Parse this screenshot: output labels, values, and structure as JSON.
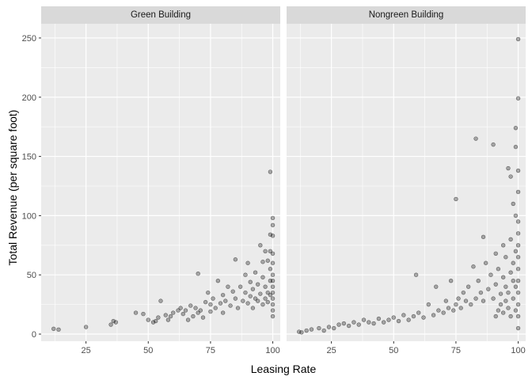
{
  "colors": {
    "panel_bg": "#ebebeb",
    "strip_bg": "#d9d9d9",
    "grid_major": "#ffffff",
    "tick": "#333333",
    "point_fill": "#000000",
    "point_opacity": 0.3
  },
  "chart_data": {
    "type": "scatter",
    "xlabel": "Leasing Rate",
    "ylabel": "Total Revenue (per square foot)",
    "xlim": [
      7,
      103
    ],
    "ylim": [
      -6,
      262
    ],
    "x_ticks": [
      25,
      50,
      75,
      100
    ],
    "y_ticks": [
      0,
      50,
      100,
      150,
      200,
      250
    ],
    "grid": true,
    "facets": [
      {
        "label": "Green Building",
        "points": [
          [
            12,
            4.5
          ],
          [
            14,
            3.8
          ],
          [
            25,
            6
          ],
          [
            35,
            8
          ],
          [
            36,
            11
          ],
          [
            37,
            10
          ],
          [
            45,
            18
          ],
          [
            48,
            17
          ],
          [
            50,
            12
          ],
          [
            52,
            10
          ],
          [
            53,
            11
          ],
          [
            54,
            14
          ],
          [
            55,
            28
          ],
          [
            57,
            16
          ],
          [
            58,
            12
          ],
          [
            59,
            15
          ],
          [
            60,
            18
          ],
          [
            62,
            20
          ],
          [
            63,
            22
          ],
          [
            64,
            17
          ],
          [
            65,
            20
          ],
          [
            66,
            12
          ],
          [
            67,
            24
          ],
          [
            68,
            15
          ],
          [
            69,
            22
          ],
          [
            70,
            51
          ],
          [
            70,
            18
          ],
          [
            71,
            20
          ],
          [
            72,
            14
          ],
          [
            73,
            27
          ],
          [
            74,
            35
          ],
          [
            75,
            25
          ],
          [
            75,
            19
          ],
          [
            76,
            30
          ],
          [
            77,
            22
          ],
          [
            78,
            45
          ],
          [
            79,
            26
          ],
          [
            80,
            33
          ],
          [
            80,
            18
          ],
          [
            81,
            28
          ],
          [
            82,
            40
          ],
          [
            83,
            24
          ],
          [
            84,
            36
          ],
          [
            85,
            63
          ],
          [
            85,
            30
          ],
          [
            86,
            22
          ],
          [
            87,
            40
          ],
          [
            88,
            28
          ],
          [
            89,
            35
          ],
          [
            89,
            50
          ],
          [
            90,
            60
          ],
          [
            90,
            26
          ],
          [
            91,
            32
          ],
          [
            91,
            44
          ],
          [
            92,
            22
          ],
          [
            92,
            38
          ],
          [
            93,
            30
          ],
          [
            93,
            52
          ],
          [
            94,
            28
          ],
          [
            94,
            42
          ],
          [
            95,
            75
          ],
          [
            95,
            34
          ],
          [
            96,
            25
          ],
          [
            96,
            48
          ],
          [
            96,
            61
          ],
          [
            97,
            70
          ],
          [
            97,
            30
          ],
          [
            97,
            40
          ],
          [
            98,
            62
          ],
          [
            98,
            35
          ],
          [
            98,
            27
          ],
          [
            99,
            137
          ],
          [
            99,
            84
          ],
          [
            99,
            70
          ],
          [
            99,
            55
          ],
          [
            99,
            45
          ],
          [
            99,
            33
          ],
          [
            100,
            98
          ],
          [
            100,
            83
          ],
          [
            100,
            92
          ],
          [
            100,
            60
          ],
          [
            100,
            50
          ],
          [
            100,
            40
          ],
          [
            100,
            30
          ],
          [
            100,
            20
          ],
          [
            100,
            15
          ],
          [
            100,
            25
          ],
          [
            100,
            35
          ],
          [
            100,
            68
          ],
          [
            100,
            45
          ]
        ]
      },
      {
        "label": "Nongreen Building",
        "points": [
          [
            12,
            2
          ],
          [
            13,
            1.5
          ],
          [
            15,
            3
          ],
          [
            17,
            4
          ],
          [
            20,
            5
          ],
          [
            22,
            3
          ],
          [
            24,
            6
          ],
          [
            26,
            5
          ],
          [
            28,
            8
          ],
          [
            30,
            9
          ],
          [
            32,
            7
          ],
          [
            34,
            10
          ],
          [
            36,
            8
          ],
          [
            38,
            12
          ],
          [
            40,
            10
          ],
          [
            42,
            9
          ],
          [
            44,
            13
          ],
          [
            46,
            10
          ],
          [
            48,
            12
          ],
          [
            50,
            14
          ],
          [
            52,
            11
          ],
          [
            54,
            16
          ],
          [
            56,
            12
          ],
          [
            58,
            15
          ],
          [
            59,
            50
          ],
          [
            60,
            18
          ],
          [
            62,
            14
          ],
          [
            64,
            25
          ],
          [
            66,
            16
          ],
          [
            67,
            40
          ],
          [
            68,
            20
          ],
          [
            70,
            18
          ],
          [
            71,
            28
          ],
          [
            72,
            22
          ],
          [
            73,
            45
          ],
          [
            74,
            20
          ],
          [
            75,
            114
          ],
          [
            75,
            25
          ],
          [
            76,
            30
          ],
          [
            77,
            22
          ],
          [
            78,
            35
          ],
          [
            79,
            28
          ],
          [
            80,
            40
          ],
          [
            81,
            25
          ],
          [
            82,
            57
          ],
          [
            83,
            165
          ],
          [
            83,
            30
          ],
          [
            84,
            45
          ],
          [
            85,
            35
          ],
          [
            86,
            82
          ],
          [
            86,
            28
          ],
          [
            87,
            60
          ],
          [
            88,
            38
          ],
          [
            89,
            50
          ],
          [
            90,
            160
          ],
          [
            90,
            30
          ],
          [
            91,
            68
          ],
          [
            91,
            42
          ],
          [
            92,
            55
          ],
          [
            93,
            34
          ],
          [
            94,
            75
          ],
          [
            94,
            48
          ],
          [
            95,
            40
          ],
          [
            95,
            65
          ],
          [
            96,
            140
          ],
          [
            96,
            35
          ],
          [
            97,
            133
          ],
          [
            97,
            80
          ],
          [
            97,
            52
          ],
          [
            98,
            110
          ],
          [
            98,
            60
          ],
          [
            98,
            45
          ],
          [
            99,
            174
          ],
          [
            99,
            158
          ],
          [
            99,
            100
          ],
          [
            99,
            70
          ],
          [
            99,
            40
          ],
          [
            100,
            249
          ],
          [
            100,
            199
          ],
          [
            100,
            138
          ],
          [
            100,
            120
          ],
          [
            100,
            95
          ],
          [
            100,
            85
          ],
          [
            100,
            75
          ],
          [
            100,
            65
          ],
          [
            100,
            55
          ],
          [
            100,
            45
          ],
          [
            100,
            35
          ],
          [
            100,
            25
          ],
          [
            100,
            15
          ],
          [
            100,
            5
          ],
          [
            99,
            20
          ],
          [
            98,
            30
          ],
          [
            97,
            15
          ],
          [
            96,
            22
          ],
          [
            95,
            28
          ],
          [
            94,
            18
          ],
          [
            93,
            25
          ],
          [
            92,
            20
          ],
          [
            91,
            15
          ]
        ]
      }
    ]
  }
}
